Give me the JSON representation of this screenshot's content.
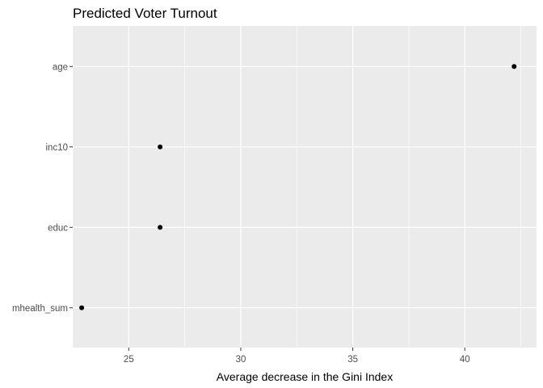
{
  "chart_data": {
    "type": "scatter",
    "title": "Predicted Voter Turnout",
    "xlabel": "Average decrease in the Gini Index",
    "ylabel": "",
    "categories": [
      "mhealth_sum",
      "educ",
      "inc10",
      "age"
    ],
    "values": [
      22.9,
      26.4,
      26.4,
      42.2
    ],
    "xlim": [
      22.5,
      43.2
    ],
    "xticks": [
      25,
      30,
      35,
      40
    ],
    "grid": true,
    "legend": "none",
    "colors": {
      "panel": "#ebebeb",
      "grid_major": "#ffffff",
      "point": "#000000"
    }
  }
}
